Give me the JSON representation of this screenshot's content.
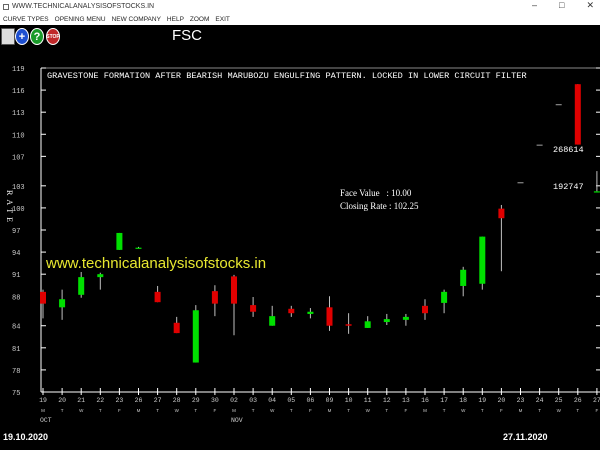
{
  "window": {
    "title": "WWW.TECHNICALANALYSISOFSTOCKS.IN",
    "minimize": "–",
    "maximize": "□",
    "close": "✕"
  },
  "menu": [
    "CURVE TYPES",
    "OPENING MENU",
    "NEW COMPANY",
    "HELP",
    "ZOOM",
    "EXIT"
  ],
  "toolbar": {
    "icons": [
      "book-icon",
      "plus-icon",
      "help-icon",
      "stop-icon"
    ],
    "plus": "+",
    "help": "?",
    "stop": "STOP"
  },
  "symbol": "FSC",
  "chart_data": {
    "type": "candlestick",
    "title": "GRAVESTONE FORMATION AFTER BEARISH MARUBOZU ENGULFING PATTERN. LOCKED IN LOWER CIRCUIT FILTER",
    "ylabel": "RATE",
    "ylim": [
      75,
      119
    ],
    "yticks": [
      75,
      78,
      81,
      84,
      88,
      91,
      94,
      97,
      100,
      103,
      107,
      110,
      113,
      116,
      119
    ],
    "dates": [
      "19",
      "20",
      "21",
      "22",
      "23",
      "26",
      "27",
      "28",
      "29",
      "30",
      "02",
      "03",
      "04",
      "05",
      "06",
      "09",
      "10",
      "11",
      "12",
      "13",
      "16",
      "17",
      "18",
      "19",
      "20",
      "23",
      "24",
      "25",
      "26",
      "27"
    ],
    "weekdays": [
      "M",
      "T",
      "W",
      "T",
      "F",
      "M",
      "T",
      "W",
      "T",
      "F",
      "M",
      "T",
      "W",
      "T",
      "F",
      "M",
      "T",
      "W",
      "T",
      "F",
      "M",
      "T",
      "W",
      "T",
      "F",
      "M",
      "T",
      "W",
      "T",
      "F"
    ],
    "months": [
      {
        "label": "OCT",
        "at": 0
      },
      {
        "label": "NOV",
        "at": 10
      }
    ],
    "candles": [
      [
        88.6,
        88.9,
        85.0,
        87.0
      ],
      [
        86.5,
        88.9,
        84.8,
        87.6
      ],
      [
        88.2,
        91.3,
        87.8,
        90.6
      ],
      [
        90.6,
        91.2,
        88.9,
        91.0
      ],
      [
        94.3,
        96.6,
        94.3,
        96.6
      ],
      [
        94.6,
        94.7,
        94.5,
        94.6
      ],
      [
        88.6,
        89.4,
        87.2,
        87.2
      ],
      [
        84.4,
        85.2,
        83.0,
        83.0
      ],
      [
        79.0,
        86.8,
        79.0,
        86.1
      ],
      [
        88.7,
        89.5,
        85.3,
        87.0
      ],
      [
        90.7,
        90.9,
        82.7,
        87.0
      ],
      [
        86.8,
        87.9,
        85.2,
        85.9
      ],
      [
        84.0,
        86.7,
        84.0,
        85.3
      ],
      [
        86.3,
        86.7,
        85.2,
        85.7
      ],
      [
        85.6,
        86.4,
        85.0,
        85.9
      ],
      [
        86.5,
        88.0,
        83.3,
        84.0
      ],
      [
        84.2,
        85.7,
        82.9,
        84.0
      ],
      [
        83.7,
        85.3,
        83.7,
        84.6
      ],
      [
        84.5,
        85.6,
        84.1,
        84.9
      ],
      [
        84.8,
        85.6,
        84.0,
        85.2
      ],
      [
        86.7,
        87.6,
        84.8,
        85.7
      ],
      [
        87.1,
        88.9,
        85.7,
        88.6
      ],
      [
        89.4,
        92.0,
        88.0,
        91.6
      ],
      [
        89.7,
        96.1,
        88.9,
        96.1
      ],
      [
        99.9,
        100.4,
        91.4,
        98.6
      ],
      [
        103.5,
        103.5,
        103.5,
        103.5
      ],
      [
        108.6,
        108.6,
        108.6,
        108.6
      ],
      [
        114.1,
        114.1,
        114.1,
        114.1
      ],
      [
        116.8,
        116.8,
        108.6,
        108.6
      ],
      [
        102.25,
        105.0,
        102.25,
        102.25
      ]
    ],
    "colors": {
      "up": "#00e000",
      "down": "#e00000",
      "wick": "#c0c0c0",
      "axis": "#ffffff"
    },
    "volume_labels": [
      "268614",
      "192747"
    ],
    "annotations": {
      "face_value": "Face Value   : 10.00",
      "closing_rate": "Closing Rate : 102.25"
    },
    "watermark": "www.technicalanalysisofstocks.in",
    "start_date": "19.10.2020",
    "end_date": "27.11.2020"
  }
}
